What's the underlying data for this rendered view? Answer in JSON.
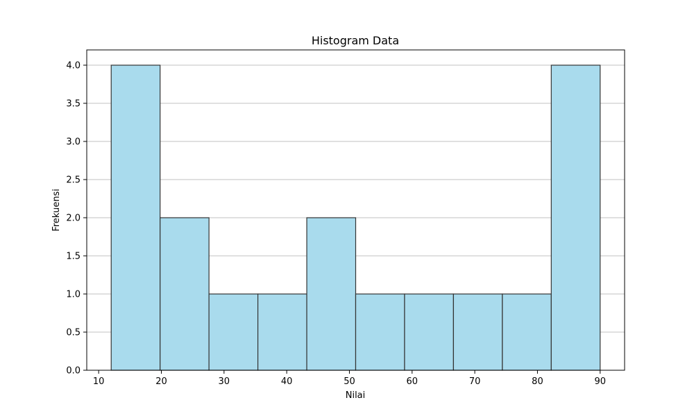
{
  "chart_data": {
    "type": "histogram",
    "title": "Histogram Data",
    "xlabel": "Nilai",
    "ylabel": "Frekuensi",
    "bins": [
      {
        "start": 12.0,
        "end": 19.8,
        "count": 4
      },
      {
        "start": 19.8,
        "end": 27.6,
        "count": 2
      },
      {
        "start": 27.6,
        "end": 35.4,
        "count": 1
      },
      {
        "start": 35.4,
        "end": 43.2,
        "count": 1
      },
      {
        "start": 43.2,
        "end": 51.0,
        "count": 2
      },
      {
        "start": 51.0,
        "end": 58.8,
        "count": 1
      },
      {
        "start": 58.8,
        "end": 66.6,
        "count": 1
      },
      {
        "start": 66.6,
        "end": 74.4,
        "count": 1
      },
      {
        "start": 74.4,
        "end": 82.2,
        "count": 1
      },
      {
        "start": 82.2,
        "end": 90.0,
        "count": 4
      }
    ],
    "xlim": [
      8.1,
      93.9
    ],
    "ylim": [
      0,
      4.2
    ],
    "xticks": [
      10,
      20,
      30,
      40,
      50,
      60,
      70,
      80,
      90
    ],
    "yticks": [
      0.0,
      0.5,
      1.0,
      1.5,
      2.0,
      2.5,
      3.0,
      3.5,
      4.0
    ],
    "ytick_labels": [
      "0.0",
      "0.5",
      "1.0",
      "1.5",
      "2.0",
      "2.5",
      "3.0",
      "3.5",
      "4.0"
    ],
    "grid": "y",
    "bar_color": "#a9dbed",
    "edge_color": "#333333",
    "grid_color": "#c0c0c0"
  }
}
